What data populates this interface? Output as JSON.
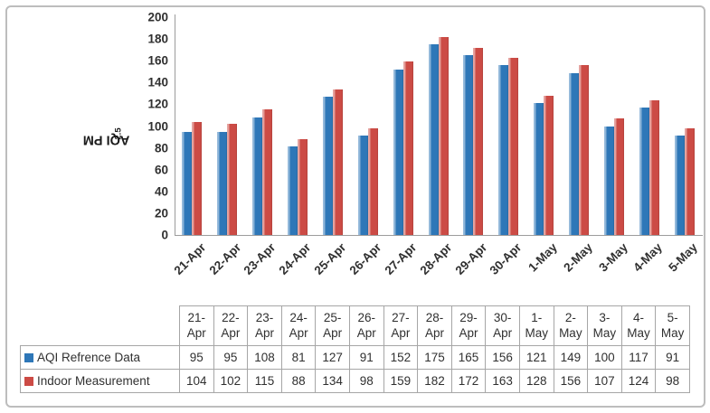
{
  "chart_data": {
    "type": "bar",
    "title": "",
    "ylabel": "AQI PM",
    "ylabel_subscript": "2.5",
    "xlabel": "",
    "categories": [
      "21-Apr",
      "22-Apr",
      "23-Apr",
      "24-Apr",
      "25-Apr",
      "26-Apr",
      "27-Apr",
      "28-Apr",
      "29-Apr",
      "30-Apr",
      "1-May",
      "2-May",
      "3-May",
      "4-May",
      "5-May"
    ],
    "series": [
      {
        "name": "AQI Refrence Data",
        "color": "#2E77B8",
        "values": [
          95,
          95,
          108,
          81,
          127,
          91,
          152,
          175,
          165,
          156,
          121,
          149,
          100,
          117,
          91
        ]
      },
      {
        "name": "Indoor Measurement",
        "color": "#CC4B45",
        "values": [
          104,
          102,
          115,
          88,
          134,
          98,
          159,
          182,
          172,
          163,
          128,
          156,
          107,
          124,
          98
        ]
      }
    ],
    "ylim": [
      0,
      200
    ],
    "ytick_step": 20,
    "grid": "off",
    "legend_position": "table-left",
    "axis_color": "#9C9C9C",
    "table_border_color": "#A6A6A6"
  }
}
